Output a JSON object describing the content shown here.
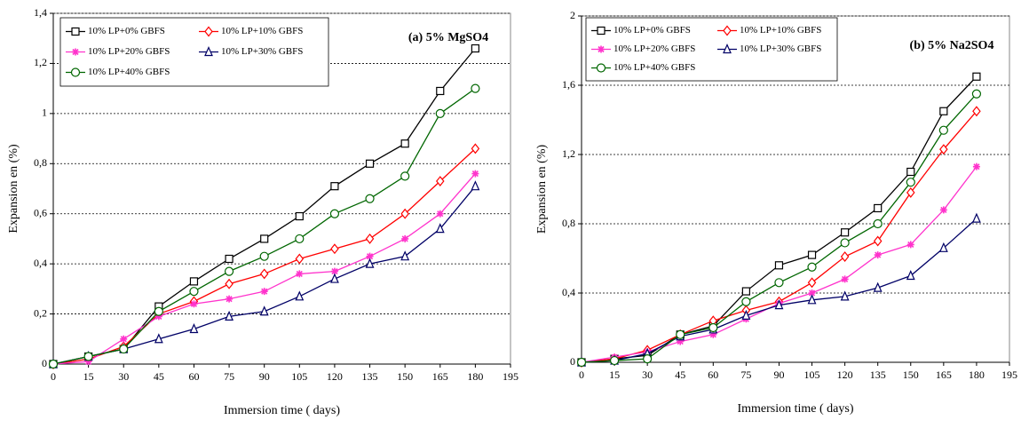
{
  "chart_data": [
    {
      "type": "line",
      "annotation": "(a) 5% MgSO4",
      "x_label": "Immersion time ( days)",
      "y_label": "Expansion en (%)",
      "x": [
        0,
        15,
        30,
        45,
        60,
        75,
        90,
        105,
        120,
        135,
        150,
        165,
        180
      ],
      "xlim": [
        0,
        195
      ],
      "xticks": [
        0,
        15,
        30,
        45,
        60,
        75,
        90,
        105,
        120,
        135,
        150,
        165,
        180,
        195
      ],
      "ylim": [
        0,
        1.4
      ],
      "yticks": [
        0,
        {
          "value": 0.2,
          "label": "0,2"
        },
        {
          "value": 0.4,
          "label": "0,4"
        },
        {
          "value": 0.6,
          "label": "0,6"
        },
        {
          "value": 0.8,
          "label": "0,8"
        },
        1,
        {
          "value": 1.2,
          "label": "1,2"
        },
        {
          "value": 1.4,
          "label": "1,4"
        }
      ],
      "grid": true,
      "series": [
        {
          "name": "10% LP+0% GBFS",
          "color": "#000000",
          "marker": "square",
          "values": [
            0,
            0.03,
            0.06,
            0.23,
            0.33,
            0.42,
            0.5,
            0.59,
            0.71,
            0.8,
            0.88,
            1.09,
            1.26
          ]
        },
        {
          "name": "10% LP+10% GBFS",
          "color": "#ff0000",
          "marker": "diamond",
          "values": [
            0,
            0.02,
            0.07,
            0.2,
            0.25,
            0.32,
            0.36,
            0.42,
            0.46,
            0.5,
            0.6,
            0.73,
            0.86
          ]
        },
        {
          "name": "10% LP+20% GBFS",
          "color": "#ff33cc",
          "marker": "asterisk",
          "values": [
            0,
            0.01,
            0.1,
            0.19,
            0.24,
            0.26,
            0.29,
            0.36,
            0.37,
            0.43,
            0.5,
            0.6,
            0.76
          ]
        },
        {
          "name": "10% LP+30% GBFS",
          "color": "#000066",
          "marker": "triangle",
          "values": [
            0,
            0.03,
            0.06,
            0.1,
            0.14,
            0.19,
            0.21,
            0.27,
            0.34,
            0.4,
            0.43,
            0.54,
            0.71
          ]
        },
        {
          "name": "10% LP+40% GBFS",
          "color": "#006600",
          "marker": "circle",
          "values": [
            0,
            0.03,
            0.06,
            0.21,
            0.29,
            0.37,
            0.43,
            0.5,
            0.6,
            0.66,
            0.75,
            1.0,
            1.1
          ]
        }
      ]
    },
    {
      "type": "line",
      "annotation": "(b) 5% Na2SO4",
      "x_label": "Immersion time ( days)",
      "y_label": "Expansion en (%)",
      "x": [
        0,
        15,
        30,
        45,
        60,
        75,
        90,
        105,
        120,
        135,
        150,
        165,
        180
      ],
      "xlim": [
        0,
        195
      ],
      "xticks": [
        0,
        15,
        30,
        45,
        60,
        75,
        90,
        105,
        120,
        135,
        150,
        165,
        180,
        195
      ],
      "ylim": [
        0,
        2
      ],
      "yticks": [
        0,
        {
          "value": 0.4,
          "label": "0,4"
        },
        {
          "value": 0.8,
          "label": "0,8"
        },
        {
          "value": 1.2,
          "label": "1,2"
        },
        {
          "value": 1.6,
          "label": "1,6"
        },
        2
      ],
      "grid": true,
      "series": [
        {
          "name": "10% LP+0% GBFS",
          "color": "#000000",
          "marker": "square",
          "values": [
            0,
            0.02,
            0.04,
            0.16,
            0.21,
            0.41,
            0.56,
            0.62,
            0.75,
            0.89,
            1.1,
            1.45,
            1.65
          ]
        },
        {
          "name": "10% LP+10% GBFS",
          "color": "#ff0000",
          "marker": "diamond",
          "values": [
            0,
            0.02,
            0.07,
            0.16,
            0.24,
            0.3,
            0.35,
            0.46,
            0.61,
            0.7,
            0.98,
            1.23,
            1.45
          ]
        },
        {
          "name": "10% LP+20% GBFS",
          "color": "#ff33cc",
          "marker": "asterisk",
          "values": [
            0,
            0.03,
            0.06,
            0.12,
            0.16,
            0.25,
            0.34,
            0.4,
            0.48,
            0.62,
            0.68,
            0.88,
            1.13
          ]
        },
        {
          "name": "10% LP+30% GBFS",
          "color": "#000066",
          "marker": "triangle",
          "values": [
            0,
            0.01,
            0.05,
            0.15,
            0.19,
            0.27,
            0.33,
            0.36,
            0.38,
            0.43,
            0.5,
            0.66,
            0.83
          ]
        },
        {
          "name": "10% LP+40% GBFS",
          "color": "#006600",
          "marker": "circle",
          "values": [
            0,
            0.01,
            0.02,
            0.16,
            0.2,
            0.35,
            0.46,
            0.55,
            0.69,
            0.8,
            1.04,
            1.34,
            1.55
          ]
        }
      ]
    }
  ]
}
